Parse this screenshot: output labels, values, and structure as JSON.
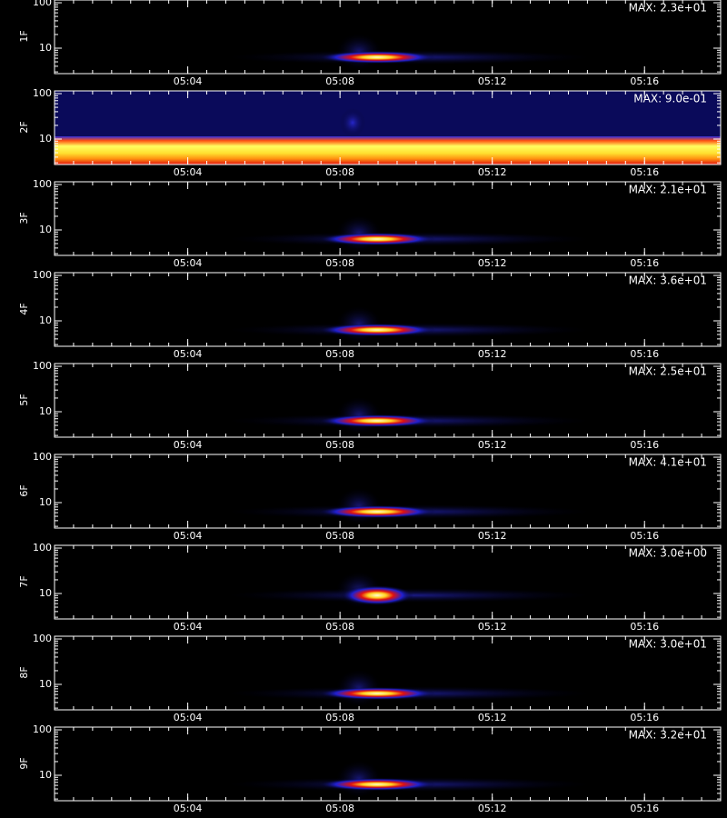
{
  "chart_data": [
    {
      "type": "spectrogram",
      "ylabel": "1F",
      "annotation": "MAX: 2.3e+01",
      "xlim": [
        "05:00:30",
        "05:18:00"
      ],
      "xticks": [
        "05:04",
        "05:08",
        "05:12",
        "05:16"
      ],
      "ylim": [
        2.75,
        115
      ],
      "yticks": [
        10,
        100
      ],
      "log_y": true
    },
    {
      "type": "spectrogram",
      "ylabel": "2F",
      "annotation": "MAX: 9.0e-01",
      "xlim": [
        "05:00:30",
        "05:18:00"
      ],
      "xticks": [
        "05:04",
        "05:08",
        "05:12",
        "05:16"
      ],
      "ylim": [
        2.75,
        115
      ],
      "yticks": [
        10,
        100
      ],
      "log_y": true
    },
    {
      "type": "spectrogram",
      "ylabel": "3F",
      "annotation": "MAX: 2.1e+01",
      "xlim": [
        "05:00:30",
        "05:18:00"
      ],
      "xticks": [
        "05:04",
        "05:08",
        "05:12",
        "05:16"
      ],
      "ylim": [
        2.75,
        115
      ],
      "yticks": [
        10,
        100
      ],
      "log_y": true
    },
    {
      "type": "spectrogram",
      "ylabel": "4F",
      "annotation": "MAX: 3.6e+01",
      "xlim": [
        "05:00:30",
        "05:18:00"
      ],
      "xticks": [
        "05:04",
        "05:08",
        "05:12",
        "05:16"
      ],
      "ylim": [
        2.75,
        115
      ],
      "yticks": [
        10,
        100
      ],
      "log_y": true
    },
    {
      "type": "spectrogram",
      "ylabel": "5F",
      "annotation": "MAX: 2.5e+01",
      "xlim": [
        "05:00:30",
        "05:18:00"
      ],
      "xticks": [
        "05:04",
        "05:08",
        "05:12",
        "05:16"
      ],
      "ylim": [
        2.75,
        115
      ],
      "yticks": [
        10,
        100
      ],
      "log_y": true
    },
    {
      "type": "spectrogram",
      "ylabel": "6F",
      "annotation": "MAX: 4.1e+01",
      "xlim": [
        "05:00:30",
        "05:18:00"
      ],
      "xticks": [
        "05:04",
        "05:08",
        "05:12",
        "05:16"
      ],
      "ylim": [
        2.75,
        115
      ],
      "yticks": [
        10,
        100
      ],
      "log_y": true
    },
    {
      "type": "spectrogram",
      "ylabel": "7F",
      "annotation": "MAX: 3.0e+00",
      "xlim": [
        "05:00:30",
        "05:18:00"
      ],
      "xticks": [
        "05:04",
        "05:08",
        "05:12",
        "05:16"
      ],
      "ylim": [
        2.75,
        115
      ],
      "yticks": [
        10,
        100
      ],
      "log_y": true
    },
    {
      "type": "spectrogram",
      "ylabel": "8F",
      "annotation": "MAX: 3.0e+01",
      "xlim": [
        "05:00:30",
        "05:18:00"
      ],
      "xticks": [
        "05:04",
        "05:08",
        "05:12",
        "05:16"
      ],
      "ylim": [
        2.75,
        115
      ],
      "yticks": [
        10,
        100
      ],
      "log_y": true
    },
    {
      "type": "spectrogram",
      "ylabel": "9F",
      "annotation": "MAX: 3.2e+01",
      "xlim": [
        "05:00:30",
        "05:18:00"
      ],
      "xticks": [
        "05:04",
        "05:08",
        "05:12",
        "05:16"
      ],
      "ylim": [
        2.75,
        115
      ],
      "yticks": [
        10,
        100
      ],
      "log_y": true
    }
  ]
}
